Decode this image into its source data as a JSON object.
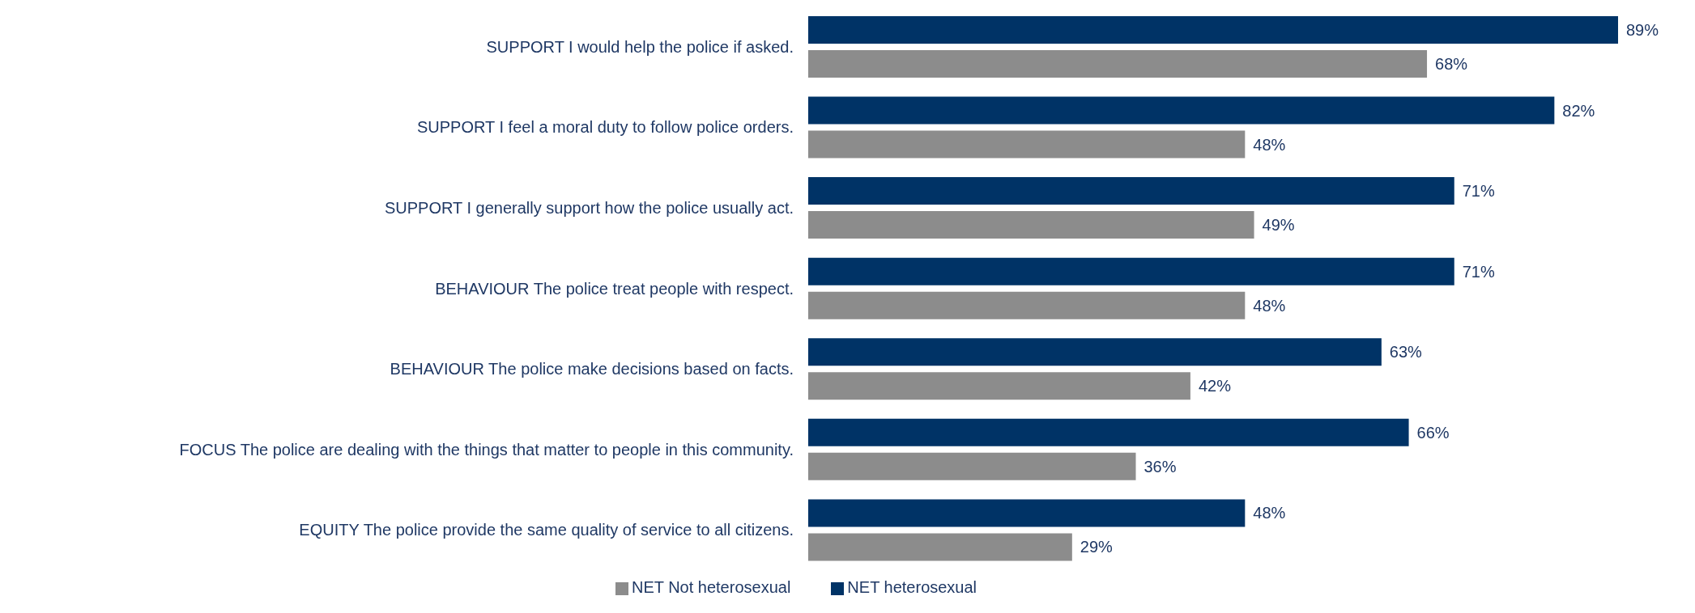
{
  "chart_data": {
    "type": "bar",
    "orientation": "horizontal",
    "categories": [
      "SUPPORT I would help the police if asked.",
      "SUPPORT I feel a moral duty to follow police orders.",
      "SUPPORT I generally support how the police usually act.",
      "BEHAVIOUR The police treat people with respect.",
      "BEHAVIOUR The police make decisions based on facts.",
      "FOCUS The police are dealing with the things that matter to people in this community.",
      "EQUITY The police provide the same quality of service to all citizens."
    ],
    "series": [
      {
        "name": "NET heterosexual",
        "color": "#003366",
        "values": [
          89,
          82,
          71,
          71,
          63,
          66,
          48
        ],
        "value_labels": [
          "89%",
          "82%",
          "71%",
          "71%",
          "63%",
          "66%",
          "48%"
        ]
      },
      {
        "name": "NET Not heterosexual",
        "color": "#8c8c8c",
        "values": [
          68,
          48,
          49,
          48,
          42,
          36,
          29
        ],
        "value_labels": [
          "68%",
          "48%",
          "49%",
          "48%",
          "42%",
          "36%",
          "29%"
        ]
      }
    ],
    "legend": "bottom",
    "grid": false
  }
}
